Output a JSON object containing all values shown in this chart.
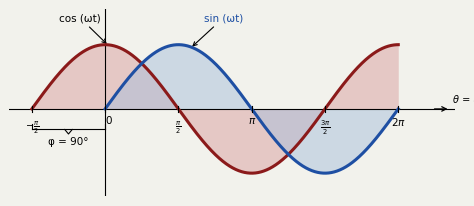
{
  "cos_color": "#8B1A1A",
  "sin_color": "#1E4FA3",
  "cos_fill_color": "#D9A0A0",
  "sin_fill_color": "#A8C0DC",
  "bg_color": "#F2F2EC",
  "xlim": [
    -2.05,
    7.5
  ],
  "ylim": [
    -1.35,
    1.55
  ],
  "xlabel": "θ = ωt",
  "cos_label": "cos (ωt)",
  "sin_label": "sin (ωt)",
  "phi_label": "φ = 90°",
  "linewidth": 2.2,
  "figwidth": 4.74,
  "figheight": 2.07,
  "dpi": 100
}
